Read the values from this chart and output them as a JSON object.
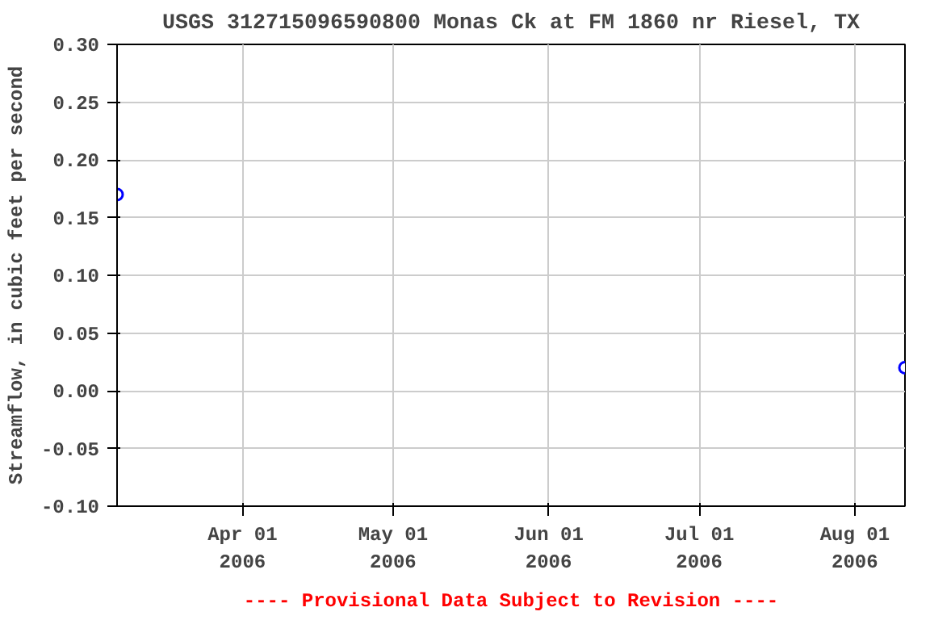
{
  "chart_data": {
    "type": "scatter",
    "title": "USGS 312715096590800 Monas Ck at FM 1860 nr Riesel, TX",
    "ylabel": "Streamflow, in cubic feet per second",
    "x": [
      "2006-03-07",
      "2006-08-11"
    ],
    "series": [
      {
        "color": "#0000ff",
        "values": [
          0.17,
          0.02
        ]
      }
    ],
    "xlim": [
      "2006-03-07",
      "2006-08-11"
    ],
    "xticks": [
      {
        "value": "2006-04-01",
        "label": "Apr 01\n2006"
      },
      {
        "value": "2006-05-01",
        "label": "May 01\n2006"
      },
      {
        "value": "2006-06-01",
        "label": "Jun 01\n2006"
      },
      {
        "value": "2006-07-01",
        "label": "Jul 01\n2006"
      },
      {
        "value": "2006-08-01",
        "label": "Aug 01\n2006"
      }
    ],
    "ylim": [
      -0.1,
      0.3
    ],
    "yticks": [
      {
        "value": -0.1,
        "label": "-0.10"
      },
      {
        "value": -0.05,
        "label": "-0.05"
      },
      {
        "value": 0,
        "label": "0.00"
      },
      {
        "value": 0.05,
        "label": "0.05"
      },
      {
        "value": 0.1,
        "label": "0.10"
      },
      {
        "value": 0.15,
        "label": "0.15"
      },
      {
        "value": 0.2,
        "label": "0.20"
      },
      {
        "value": 0.25,
        "label": "0.25"
      },
      {
        "value": 0.3,
        "label": "0.30"
      }
    ],
    "grid": true,
    "marker": "circle",
    "annotations": [
      "---- Provisional Data Subject to Revision ----"
    ]
  }
}
